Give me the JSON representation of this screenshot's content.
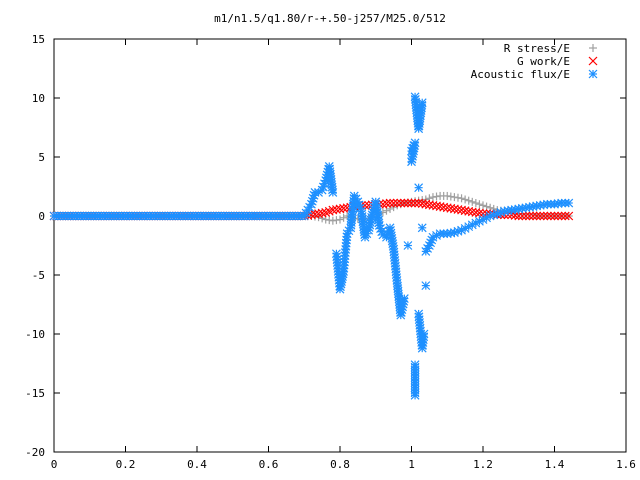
{
  "chart_data": {
    "type": "scatter",
    "title": "m1/n1.5/q1.80/r-+.50-j257/M25.0/512",
    "xlabel": "",
    "ylabel": "",
    "xlim": [
      0,
      1.6
    ],
    "ylim": [
      -20,
      15
    ],
    "x_ticks": [
      "0",
      "0.2",
      "0.4",
      "0.6",
      "0.8",
      "1",
      "1.2",
      "1.4",
      "1.6"
    ],
    "y_ticks": [
      "-20",
      "-15",
      "-10",
      "-5",
      "0",
      "5",
      "10",
      "15"
    ],
    "grid": false,
    "legend_placement": "top-right",
    "series": [
      {
        "name": "R stress/E",
        "color": "#a0a0a0",
        "marker": "plus",
        "points": [
          [
            0.0,
            0.0
          ],
          [
            0.05,
            0.0
          ],
          [
            0.1,
            0.0
          ],
          [
            0.15,
            0.0
          ],
          [
            0.2,
            0.0
          ],
          [
            0.25,
            0.0
          ],
          [
            0.3,
            0.0
          ],
          [
            0.35,
            0.0
          ],
          [
            0.4,
            0.0
          ],
          [
            0.45,
            0.0
          ],
          [
            0.5,
            0.0
          ],
          [
            0.55,
            0.0
          ],
          [
            0.6,
            0.0
          ],
          [
            0.65,
            0.0
          ],
          [
            0.7,
            0.0
          ],
          [
            0.72,
            0.0
          ],
          [
            0.74,
            -0.1
          ],
          [
            0.76,
            -0.3
          ],
          [
            0.78,
            -0.4
          ],
          [
            0.8,
            -0.3
          ],
          [
            0.82,
            0.0
          ],
          [
            0.84,
            -0.2
          ],
          [
            0.86,
            -0.3
          ],
          [
            0.88,
            -0.2
          ],
          [
            0.9,
            0.1
          ],
          [
            0.92,
            0.3
          ],
          [
            0.94,
            0.6
          ],
          [
            0.96,
            0.9
          ],
          [
            0.98,
            1.1
          ],
          [
            1.0,
            1.2
          ],
          [
            1.02,
            1.3
          ],
          [
            1.04,
            1.4
          ],
          [
            1.06,
            1.6
          ],
          [
            1.08,
            1.7
          ],
          [
            1.1,
            1.7
          ],
          [
            1.12,
            1.6
          ],
          [
            1.14,
            1.5
          ],
          [
            1.16,
            1.3
          ],
          [
            1.18,
            1.1
          ],
          [
            1.2,
            0.9
          ],
          [
            1.22,
            0.7
          ],
          [
            1.24,
            0.5
          ],
          [
            1.26,
            0.4
          ],
          [
            1.28,
            0.3
          ],
          [
            1.3,
            0.2
          ],
          [
            1.32,
            0.1
          ],
          [
            1.34,
            0.1
          ],
          [
            1.36,
            0.0
          ],
          [
            1.38,
            0.0
          ],
          [
            1.4,
            0.0
          ],
          [
            1.42,
            0.0
          ],
          [
            1.44,
            0.0
          ]
        ]
      },
      {
        "name": "G work/E",
        "color": "#ff0000",
        "marker": "cross",
        "points": [
          [
            0.0,
            0.0
          ],
          [
            0.05,
            0.0
          ],
          [
            0.1,
            0.0
          ],
          [
            0.15,
            0.0
          ],
          [
            0.2,
            0.0
          ],
          [
            0.25,
            0.0
          ],
          [
            0.3,
            0.0
          ],
          [
            0.35,
            0.0
          ],
          [
            0.4,
            0.0
          ],
          [
            0.45,
            0.0
          ],
          [
            0.5,
            0.0
          ],
          [
            0.55,
            0.0
          ],
          [
            0.6,
            0.0
          ],
          [
            0.65,
            0.0
          ],
          [
            0.7,
            0.0
          ],
          [
            0.72,
            0.1
          ],
          [
            0.74,
            0.2
          ],
          [
            0.76,
            0.3
          ],
          [
            0.78,
            0.5
          ],
          [
            0.8,
            0.6
          ],
          [
            0.82,
            0.7
          ],
          [
            0.84,
            0.8
          ],
          [
            0.86,
            0.9
          ],
          [
            0.88,
            0.9
          ],
          [
            0.9,
            1.0
          ],
          [
            0.92,
            1.0
          ],
          [
            0.94,
            1.1
          ],
          [
            0.96,
            1.1
          ],
          [
            0.98,
            1.1
          ],
          [
            1.0,
            1.1
          ],
          [
            1.02,
            1.1
          ],
          [
            1.04,
            1.0
          ],
          [
            1.06,
            0.9
          ],
          [
            1.08,
            0.8
          ],
          [
            1.1,
            0.7
          ],
          [
            1.12,
            0.6
          ],
          [
            1.14,
            0.5
          ],
          [
            1.16,
            0.4
          ],
          [
            1.18,
            0.3
          ],
          [
            1.2,
            0.2
          ],
          [
            1.22,
            0.2
          ],
          [
            1.24,
            0.1
          ],
          [
            1.26,
            0.1
          ],
          [
            1.28,
            0.1
          ],
          [
            1.3,
            0.0
          ],
          [
            1.32,
            0.0
          ],
          [
            1.34,
            0.0
          ],
          [
            1.36,
            0.0
          ],
          [
            1.38,
            0.0
          ],
          [
            1.4,
            0.0
          ],
          [
            1.42,
            0.0
          ],
          [
            1.44,
            0.0
          ]
        ]
      },
      {
        "name": "Acoustic flux/E",
        "color": "#1e90ff",
        "marker": "star",
        "points": [
          [
            0.0,
            0.0
          ],
          [
            0.05,
            0.0
          ],
          [
            0.1,
            0.0
          ],
          [
            0.15,
            0.0
          ],
          [
            0.2,
            0.0
          ],
          [
            0.25,
            0.0
          ],
          [
            0.3,
            0.0
          ],
          [
            0.35,
            0.0
          ],
          [
            0.4,
            0.0
          ],
          [
            0.45,
            0.0
          ],
          [
            0.5,
            0.0
          ],
          [
            0.55,
            0.0
          ],
          [
            0.6,
            0.0
          ],
          [
            0.65,
            0.0
          ],
          [
            0.7,
            0.0
          ],
          [
            0.72,
            1.0
          ],
          [
            0.73,
            2.0
          ],
          [
            0.74,
            2.0
          ],
          [
            0.75,
            2.2
          ],
          [
            0.76,
            3.0
          ],
          [
            0.77,
            4.2
          ],
          [
            0.78,
            2.0
          ],
          [
            0.79,
            -3.2
          ],
          [
            0.8,
            -6.2
          ],
          [
            0.81,
            -4.7
          ],
          [
            0.82,
            -1.5
          ],
          [
            0.83,
            -1.0
          ],
          [
            0.84,
            1.7
          ],
          [
            0.85,
            1.2
          ],
          [
            0.86,
            0.4
          ],
          [
            0.87,
            -1.8
          ],
          [
            0.88,
            -1.2
          ],
          [
            0.89,
            0.1
          ],
          [
            0.9,
            1.2
          ],
          [
            0.91,
            -0.8
          ],
          [
            0.92,
            -1.6
          ],
          [
            0.93,
            -1.8
          ],
          [
            0.94,
            -1.0
          ],
          [
            0.95,
            -2.8
          ],
          [
            0.96,
            -5.7
          ],
          [
            0.97,
            -8.4
          ],
          [
            0.98,
            -7.0
          ],
          [
            0.99,
            -2.5
          ],
          [
            1.0,
            5.5
          ],
          [
            1.01,
            6.2
          ],
          [
            1.0,
            4.6
          ],
          [
            1.01,
            10.1
          ],
          [
            1.02,
            7.4
          ],
          [
            1.03,
            9.6
          ],
          [
            1.02,
            2.4
          ],
          [
            1.03,
            -1.0
          ],
          [
            1.04,
            -5.9
          ],
          [
            1.01,
            -12.6
          ],
          [
            1.01,
            -15.2
          ],
          [
            1.02,
            -8.3
          ],
          [
            1.03,
            -11.2
          ],
          [
            1.035,
            -10.0
          ],
          [
            1.04,
            -3.0
          ],
          [
            1.05,
            -2.5
          ],
          [
            1.06,
            -1.8
          ],
          [
            1.08,
            -1.5
          ],
          [
            1.1,
            -1.5
          ],
          [
            1.12,
            -1.4
          ],
          [
            1.14,
            -1.2
          ],
          [
            1.16,
            -0.9
          ],
          [
            1.18,
            -0.6
          ],
          [
            1.2,
            -0.3
          ],
          [
            1.22,
            0.0
          ],
          [
            1.24,
            0.2
          ],
          [
            1.26,
            0.4
          ],
          [
            1.28,
            0.5
          ],
          [
            1.3,
            0.6
          ],
          [
            1.32,
            0.7
          ],
          [
            1.34,
            0.8
          ],
          [
            1.36,
            0.9
          ],
          [
            1.38,
            1.0
          ],
          [
            1.4,
            1.0
          ],
          [
            1.42,
            1.1
          ],
          [
            1.44,
            1.1
          ]
        ]
      }
    ]
  }
}
